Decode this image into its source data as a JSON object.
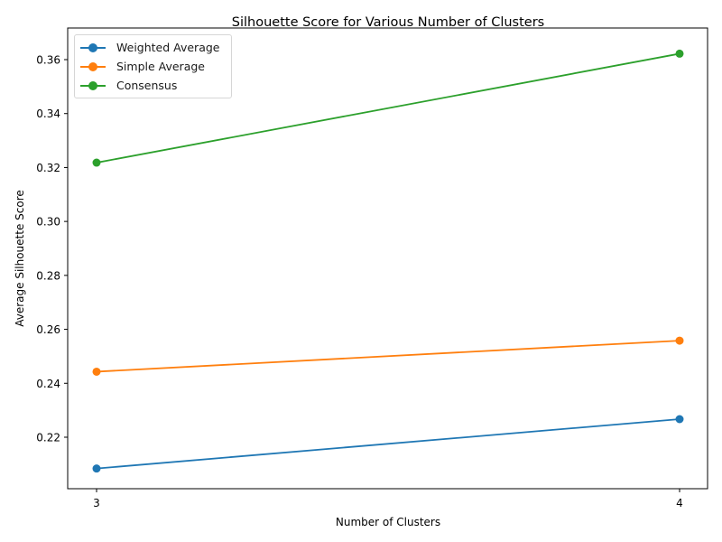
{
  "chart_data": {
    "type": "line",
    "title": "Silhouette Score for Various Number of Clusters",
    "xlabel": "Number of Clusters",
    "ylabel": "Average Silhouette Score",
    "x": [
      3,
      4
    ],
    "x_ticks": [
      "3",
      "4"
    ],
    "y_ticks": [
      "0.22",
      "0.24",
      "0.26",
      "0.28",
      "0.30",
      "0.32",
      "0.34",
      "0.36"
    ],
    "ylim": [
      0.2,
      0.37
    ],
    "grid": false,
    "legend_position": "upper left",
    "series": [
      {
        "name": "Weighted Average",
        "color": "#1f77b4",
        "values": [
          0.2084,
          0.2267
        ]
      },
      {
        "name": "Simple Average",
        "color": "#ff7f0e",
        "values": [
          0.2443,
          0.2558
        ]
      },
      {
        "name": "Consensus",
        "color": "#2ca02c",
        "values": [
          0.3218,
          0.3622
        ]
      }
    ]
  }
}
